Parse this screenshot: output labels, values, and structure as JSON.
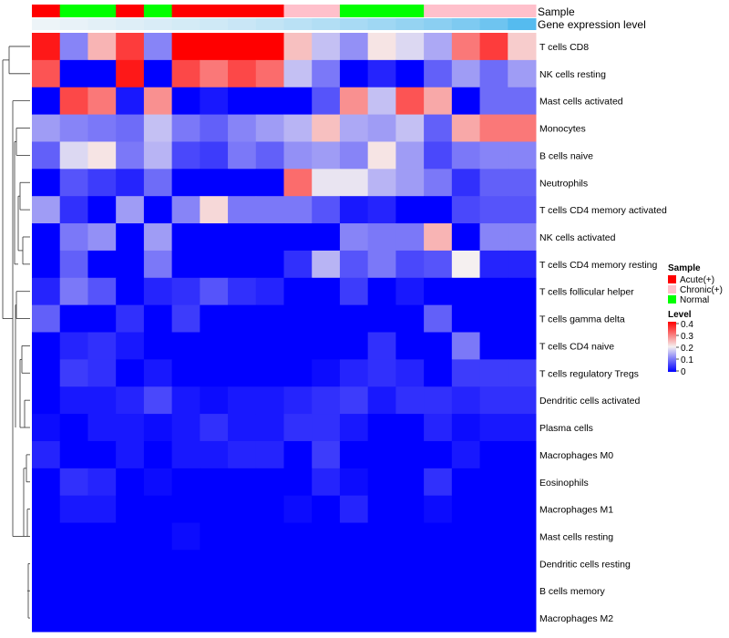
{
  "chart_data": {
    "type": "heatmap",
    "annotation_titles": [
      "Sample",
      "Gene expression level"
    ],
    "sample_groups": [
      "Acute(+)",
      "Normal",
      "Normal",
      "Acute(+)",
      "Normal",
      "Acute(+)",
      "Acute(+)",
      "Acute(+)",
      "Acute(+)",
      "Chronic(+)",
      "Chronic(+)",
      "Normal",
      "Normal",
      "Normal",
      "Chronic(+)",
      "Chronic(+)",
      "Chronic(+)",
      "Chronic(+)"
    ],
    "expression_level": [
      0.02,
      0.05,
      0.08,
      0.11,
      0.14,
      0.17,
      0.2,
      0.24,
      0.28,
      0.33,
      0.38,
      0.44,
      0.5,
      0.56,
      0.62,
      0.7,
      0.8,
      0.95
    ],
    "rows": [
      "T cells CD8",
      "NK cells resting",
      "Mast cells activated",
      "Monocytes",
      "B cells naive",
      "Neutrophils",
      "T cells CD4 memory activated",
      "NK cells activated",
      "T cells CD4 memory resting",
      "T cells follicular helper",
      "T cells gamma delta",
      "T cells CD4 naive",
      "T cells regulatory  Tregs",
      "Dendritic cells activated",
      "Plasma cells",
      "Macrophages M0",
      "Eosinophils",
      "Macrophages M1",
      "Mast cells resting",
      "Dendritic cells resting",
      "B cells memory",
      "Macrophages M2"
    ],
    "values": [
      [
        0.38,
        0.11,
        0.25,
        0.35,
        0.11,
        0.4,
        0.4,
        0.4,
        0.4,
        0.24,
        0.16,
        0.12,
        0.21,
        0.18,
        0.14,
        0.3,
        0.35,
        0.23
      ],
      [
        0.33,
        0.0,
        0.0,
        0.38,
        0.0,
        0.34,
        0.3,
        0.34,
        0.31,
        0.16,
        0.1,
        0.0,
        0.03,
        0.0,
        0.08,
        0.13,
        0.09,
        0.13
      ],
      [
        0.0,
        0.34,
        0.3,
        0.02,
        0.28,
        0.0,
        0.02,
        0.0,
        0.0,
        0.0,
        0.07,
        0.28,
        0.16,
        0.33,
        0.26,
        0.0,
        0.09,
        0.09
      ],
      [
        0.13,
        0.11,
        0.1,
        0.09,
        0.16,
        0.1,
        0.08,
        0.11,
        0.13,
        0.15,
        0.24,
        0.14,
        0.13,
        0.16,
        0.08,
        0.26,
        0.3,
        0.3
      ],
      [
        0.08,
        0.18,
        0.21,
        0.1,
        0.15,
        0.06,
        0.05,
        0.1,
        0.08,
        0.12,
        0.13,
        0.11,
        0.21,
        0.13,
        0.06,
        0.1,
        0.11,
        0.11
      ],
      [
        0.0,
        0.07,
        0.05,
        0.03,
        0.09,
        0.0,
        0.0,
        0.0,
        0.0,
        0.31,
        0.19,
        0.19,
        0.15,
        0.13,
        0.1,
        0.04,
        0.08,
        0.08
      ],
      [
        0.13,
        0.04,
        0.0,
        0.13,
        0.0,
        0.11,
        0.22,
        0.1,
        0.1,
        0.1,
        0.07,
        0.02,
        0.03,
        0.0,
        0.0,
        0.06,
        0.07,
        0.07
      ],
      [
        0.0,
        0.1,
        0.12,
        0.0,
        0.13,
        0.0,
        0.0,
        0.0,
        0.0,
        0.0,
        0.0,
        0.11,
        0.1,
        0.1,
        0.25,
        0.0,
        0.11,
        0.11
      ],
      [
        0.0,
        0.08,
        0.0,
        0.0,
        0.1,
        0.0,
        0.0,
        0.0,
        0.0,
        0.04,
        0.15,
        0.07,
        0.1,
        0.06,
        0.07,
        0.2,
        0.03,
        0.03
      ],
      [
        0.03,
        0.1,
        0.07,
        0.0,
        0.03,
        0.04,
        0.07,
        0.04,
        0.03,
        0.0,
        0.0,
        0.05,
        0.0,
        0.02,
        0.0,
        0.0,
        0.0,
        0.0
      ],
      [
        0.08,
        0.0,
        0.0,
        0.04,
        0.0,
        0.05,
        0.0,
        0.0,
        0.0,
        0.0,
        0.0,
        0.0,
        0.0,
        0.0,
        0.08,
        0.0,
        0.0,
        0.0
      ],
      [
        0.0,
        0.03,
        0.04,
        0.02,
        0.0,
        0.0,
        0.0,
        0.0,
        0.0,
        0.0,
        0.0,
        0.0,
        0.04,
        0.0,
        0.0,
        0.1,
        0.0,
        0.0
      ],
      [
        0.0,
        0.05,
        0.04,
        0.0,
        0.02,
        0.0,
        0.0,
        0.0,
        0.0,
        0.0,
        0.01,
        0.03,
        0.04,
        0.03,
        0.0,
        0.05,
        0.05,
        0.05
      ],
      [
        0.0,
        0.02,
        0.02,
        0.03,
        0.06,
        0.02,
        0.01,
        0.02,
        0.02,
        0.03,
        0.04,
        0.05,
        0.02,
        0.04,
        0.04,
        0.03,
        0.04,
        0.04
      ],
      [
        0.01,
        0.0,
        0.02,
        0.02,
        0.01,
        0.02,
        0.04,
        0.02,
        0.02,
        0.04,
        0.04,
        0.02,
        0.0,
        0.0,
        0.03,
        0.01,
        0.02,
        0.02
      ],
      [
        0.03,
        0.0,
        0.0,
        0.02,
        0.0,
        0.02,
        0.02,
        0.03,
        0.03,
        0.0,
        0.05,
        0.0,
        0.0,
        0.0,
        0.0,
        0.02,
        0.0,
        0.0
      ],
      [
        0.0,
        0.04,
        0.03,
        0.0,
        0.01,
        0.0,
        0.0,
        0.0,
        0.0,
        0.0,
        0.03,
        0.01,
        0.0,
        0.0,
        0.04,
        0.0,
        0.0,
        0.0
      ],
      [
        0.0,
        0.02,
        0.02,
        0.0,
        0.0,
        0.0,
        0.0,
        0.0,
        0.0,
        0.01,
        0.0,
        0.03,
        0.0,
        0.0,
        0.01,
        0.0,
        0.0,
        0.0
      ],
      [
        0.0,
        0.0,
        0.0,
        0.0,
        0.0,
        0.01,
        0.0,
        0.0,
        0.0,
        0.0,
        0.0,
        0.0,
        0.0,
        0.0,
        0.0,
        0.0,
        0.0,
        0.0
      ],
      [
        0.0,
        0.0,
        0.0,
        0.0,
        0.0,
        0.0,
        0.0,
        0.0,
        0.0,
        0.0,
        0.0,
        0.0,
        0.0,
        0.0,
        0.0,
        0.0,
        0.0,
        0.0
      ],
      [
        0.0,
        0.0,
        0.0,
        0.0,
        0.0,
        0.0,
        0.0,
        0.0,
        0.0,
        0.0,
        0.0,
        0.0,
        0.0,
        0.0,
        0.0,
        0.0,
        0.0,
        0.0
      ],
      [
        0.0,
        0.0,
        0.0,
        0.0,
        0.0,
        0.0,
        0.0,
        0.0,
        0.0,
        0.0,
        0.0,
        0.0,
        0.0,
        0.0,
        0.0,
        0.0,
        0.0,
        0.0
      ]
    ],
    "color_scale": {
      "min": 0,
      "max": 0.4,
      "low": "#0000ff",
      "mid": "#f5f0f0",
      "high": "#ff0000"
    },
    "legend": {
      "sample_title": "Sample",
      "sample_items": [
        {
          "label": "Acute(+)",
          "color": "#ff0000"
        },
        {
          "label": "Chronic(+)",
          "color": "#ffc0cb"
        },
        {
          "label": "Normal",
          "color": "#00ff00"
        }
      ],
      "level_title": "Level",
      "level_ticks": [
        "0.4",
        "0.3",
        "0.2",
        "0.1",
        "0"
      ],
      "placement": "right"
    },
    "expression_color_scale": {
      "low": "#f0f5f8",
      "high": "#4db8ee"
    },
    "dendrogram": "rows"
  }
}
